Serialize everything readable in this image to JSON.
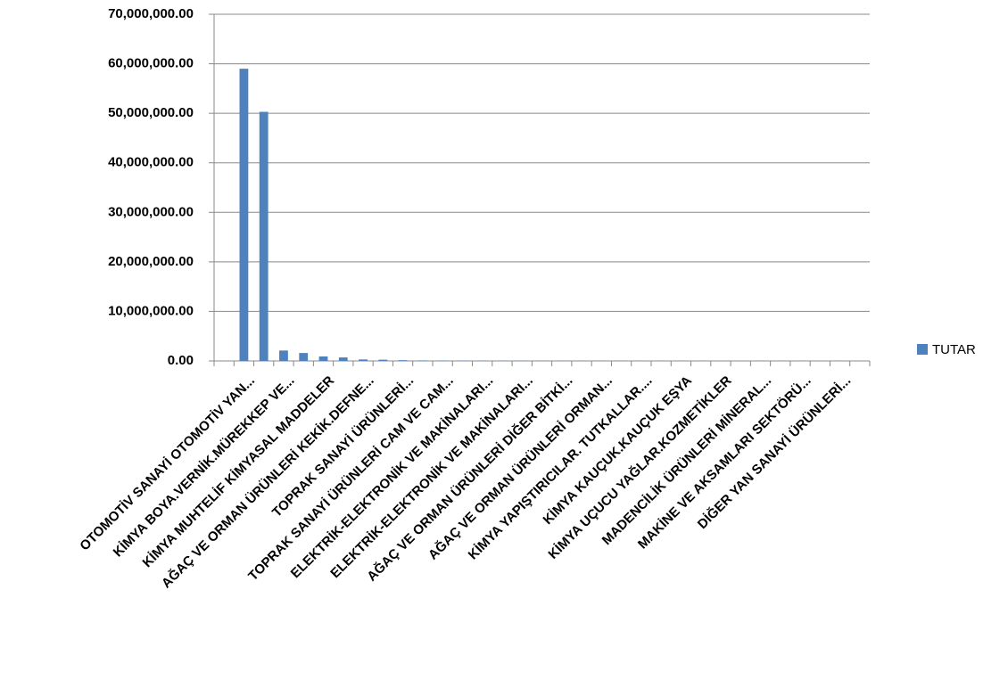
{
  "chart_data": {
    "type": "bar",
    "categories": [
      null,
      "OTOMOTİV SANAYİ OTOMOTİV YAN...",
      null,
      "KİMYA BOYA.VERNİK.MÜREKKEP VE...",
      null,
      "KİMYA MUHTELİF KİMYASAL MADDELER",
      null,
      "AĞAÇ VE ORMAN ÜRÜNLERİ KEKİK.DEFNE...",
      null,
      "TOPRAK SANAYİ ÜRÜNLERİ...",
      null,
      "TOPRAK SANAYİ ÜRÜNLERİ CAM VE CAM...",
      null,
      "ELEKTRİK-ELEKTRONİK VE MAKİNALARI...",
      null,
      "ELEKTRİK-ELEKTRONİK VE MAKİNALARI...",
      null,
      "AĞAÇ VE ORMAN ÜRÜNLERİ DİĞER BİTKİ...",
      null,
      "AĞAÇ VE ORMAN ÜRÜNLERİ ORMAN...",
      null,
      "KİMYA YAPIŞTIRICILAR. TUTKALLAR....",
      null,
      "KİMYA KAUÇUK.KAUÇUK EŞYA",
      null,
      "KİMYA UÇUCU YAĞLAR.KOZMETİKLER",
      null,
      "MADENCİLİK ÜRÜNLERİ MİNERAL...",
      null,
      "MAKİNE VE AKSAMLARI SEKTÖRÜ...",
      null,
      "DİĞER YAN SANAYİ ÜRÜNLERİ...",
      null
    ],
    "series": [
      {
        "name": "TUTAR",
        "color": "#4f81bd",
        "values": [
          0,
          59000000,
          50300000,
          2100000,
          1600000,
          900000,
          700000,
          300000,
          250000,
          150000,
          100000,
          80000,
          60000,
          50000,
          40000,
          35000,
          30000,
          25000,
          20000,
          18000,
          15000,
          12000,
          10000,
          8000,
          7000,
          6000,
          5000,
          4000,
          3000,
          2000,
          1500,
          1000,
          500
        ]
      }
    ],
    "ylim": [
      0,
      70000000
    ],
    "yticks": [
      {
        "value": 0,
        "label": "0.00"
      },
      {
        "value": 10000000,
        "label": "10,000,000.00"
      },
      {
        "value": 20000000,
        "label": "20,000,000.00"
      },
      {
        "value": 30000000,
        "label": "30,000,000.00"
      },
      {
        "value": 40000000,
        "label": "40,000,000.00"
      },
      {
        "value": 50000000,
        "label": "50,000,000.00"
      },
      {
        "value": 60000000,
        "label": "60,000,000.00"
      },
      {
        "value": 70000000,
        "label": "70,000,000.00"
      }
    ],
    "grid": true,
    "legend": "right"
  }
}
